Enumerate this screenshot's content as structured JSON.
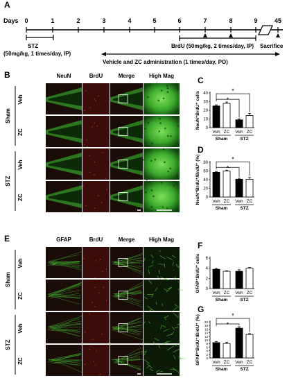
{
  "panel_labels": {
    "A": "A",
    "B": "B",
    "C": "C",
    "D": "D",
    "E": "E",
    "F": "F",
    "G": "G"
  },
  "timeline": {
    "days_label": "Days",
    "ticks": [
      "0",
      "1",
      "2",
      "3",
      "4",
      "5",
      "6",
      "7",
      "8",
      "9",
      "45"
    ],
    "stz_label": "STZ",
    "stz_dose": "(50mg/kg, 1 times/day, IP)",
    "brdu_label": "BrdU (50mg/kg, 2 times/day, IP)",
    "vehicle_label": "Vehicle and ZC administration (1 times/day, PO)",
    "sacrifice_label": "Sacrifice"
  },
  "micrographs": {
    "column_headers": [
      "NeuN",
      "BrdU",
      "Merge",
      "High Mag"
    ],
    "column_headers_e": [
      "GFAP",
      "BrdU",
      "Merge",
      "High Mag"
    ],
    "group_labels": [
      "Sham",
      "STZ"
    ],
    "row_labels": [
      "Veh",
      "ZC",
      "Veh",
      "ZC"
    ]
  },
  "chart_data": [
    {
      "panel": "C",
      "type": "bar",
      "categories": [
        "Veh",
        "ZC",
        "Veh",
        "ZC"
      ],
      "groups": [
        "Sham",
        "STZ"
      ],
      "ylabel": "NeuN⁺BrdU⁺ cells",
      "values": [
        25,
        28,
        9,
        14
      ],
      "errors": [
        1.2,
        1.5,
        1.0,
        2.5
      ],
      "fills": [
        "#000000",
        "#ffffff",
        "#000000",
        "#ffffff"
      ],
      "ylim": [
        0,
        40
      ],
      "yticks": [
        "0",
        "10",
        "20",
        "30",
        "40"
      ],
      "sig": [
        "*",
        "*"
      ]
    },
    {
      "panel": "D",
      "type": "bar",
      "categories": [
        "Veh",
        "ZC",
        "Veh",
        "ZC"
      ],
      "groups": [
        "Sham",
        "STZ"
      ],
      "ylabel": "NeuN⁺BrdU⁺/BrdU⁺ (%)",
      "values": [
        57,
        60,
        41,
        41
      ],
      "errors": [
        2,
        2,
        2,
        4
      ],
      "fills": [
        "#000000",
        "#ffffff",
        "#000000",
        "#ffffff"
      ],
      "ylim": [
        0,
        80
      ],
      "yticks": [
        "0",
        "20",
        "40",
        "60",
        "80"
      ],
      "sig": [
        "*",
        "*"
      ]
    },
    {
      "panel": "F",
      "type": "bar",
      "categories": [
        "Veh",
        "ZC",
        "Veh",
        "ZC"
      ],
      "groups": [
        "Sham",
        "STZ"
      ],
      "ylabel": "GFAP⁺BrdU⁺ cells",
      "values": [
        3.8,
        3.4,
        3.4,
        4.0
      ],
      "errors": [
        0.15,
        0.1,
        0.3,
        0.15
      ],
      "fills": [
        "#000000",
        "#ffffff",
        "#000000",
        "#ffffff"
      ],
      "ylim": [
        0,
        6
      ],
      "yticks": [
        "0",
        "2",
        "4",
        "6"
      ],
      "sig": []
    },
    {
      "panel": "G",
      "type": "bar",
      "categories": [
        "Veh",
        "ZC",
        "Veh",
        "ZC"
      ],
      "groups": [
        "Sham",
        "STZ"
      ],
      "ylabel": "GFAP⁺BrdU⁺/BrdU⁺ (%)",
      "values": [
        8.5,
        8,
        16.5,
        13
      ],
      "errors": [
        0.5,
        0.6,
        0.8,
        0.5
      ],
      "fills": [
        "#000000",
        "#ffffff",
        "#000000",
        "#ffffff"
      ],
      "ylim": [
        0,
        20
      ],
      "yticks": [
        "0",
        "2",
        "4",
        "6",
        "8",
        "10",
        "12",
        "14",
        "16",
        "18",
        "20"
      ],
      "sig": [
        "*",
        "*"
      ]
    }
  ]
}
